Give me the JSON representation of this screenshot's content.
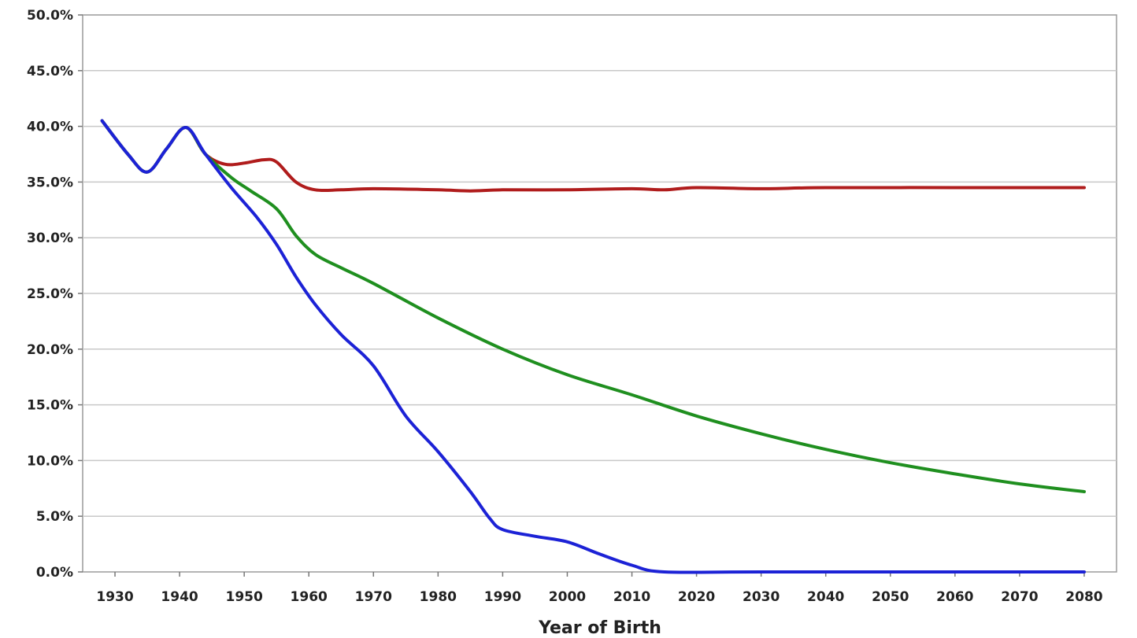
{
  "chart_data": {
    "type": "line",
    "title": "",
    "xlabel": "Year of Birth",
    "ylabel": "",
    "xlim": [
      1925,
      2085
    ],
    "ylim": [
      0,
      50
    ],
    "x_ticks": [
      1930,
      1940,
      1950,
      1960,
      1970,
      1980,
      1990,
      2000,
      2010,
      2020,
      2030,
      2040,
      2050,
      2060,
      2070,
      2080
    ],
    "y_ticks": [
      0,
      5,
      10,
      15,
      20,
      25,
      30,
      35,
      40,
      45,
      50
    ],
    "y_tick_labels": [
      "0.0%",
      "5.0%",
      "10.0%",
      "15.0%",
      "20.0%",
      "25.0%",
      "30.0%",
      "35.0%",
      "40.0%",
      "45.0%",
      "50.0%"
    ],
    "grid": true,
    "legend": "none",
    "series": [
      {
        "color": "#b01c1c",
        "points": [
          [
            1928,
            40.5
          ],
          [
            1932,
            37.5
          ],
          [
            1935,
            35.9
          ],
          [
            1938,
            38
          ],
          [
            1941,
            39.9
          ],
          [
            1944,
            37.5
          ],
          [
            1947,
            36.6
          ],
          [
            1950,
            36.7
          ],
          [
            1953,
            37
          ],
          [
            1955,
            36.8
          ],
          [
            1958,
            35
          ],
          [
            1961,
            34.3
          ],
          [
            1965,
            34.3
          ],
          [
            1970,
            34.4
          ],
          [
            1980,
            34.3
          ],
          [
            1985,
            34.2
          ],
          [
            1990,
            34.3
          ],
          [
            2000,
            34.3
          ],
          [
            2010,
            34.4
          ],
          [
            2015,
            34.3
          ],
          [
            2020,
            34.5
          ],
          [
            2030,
            34.4
          ],
          [
            2040,
            34.5
          ],
          [
            2060,
            34.5
          ],
          [
            2080,
            34.5
          ]
        ]
      },
      {
        "color": "#1f8f1f",
        "points": [
          [
            1928,
            40.5
          ],
          [
            1932,
            37.5
          ],
          [
            1935,
            35.9
          ],
          [
            1938,
            38
          ],
          [
            1941,
            39.9
          ],
          [
            1944,
            37.5
          ],
          [
            1948,
            35.4
          ],
          [
            1951,
            34.2
          ],
          [
            1955,
            32.6
          ],
          [
            1958,
            30.2
          ],
          [
            1961,
            28.5
          ],
          [
            1965,
            27.3
          ],
          [
            1970,
            25.9
          ],
          [
            1980,
            22.8
          ],
          [
            1990,
            20
          ],
          [
            2000,
            17.7
          ],
          [
            2010,
            15.9
          ],
          [
            2020,
            14
          ],
          [
            2030,
            12.4
          ],
          [
            2040,
            11
          ],
          [
            2050,
            9.8
          ],
          [
            2060,
            8.8
          ],
          [
            2070,
            7.9
          ],
          [
            2080,
            7.2
          ]
        ]
      },
      {
        "color": "#1c22d6",
        "points": [
          [
            1928,
            40.5
          ],
          [
            1932,
            37.5
          ],
          [
            1935,
            35.9
          ],
          [
            1938,
            38
          ],
          [
            1941,
            39.9
          ],
          [
            1944,
            37.5
          ],
          [
            1948,
            34.5
          ],
          [
            1952,
            31.8
          ],
          [
            1955,
            29.4
          ],
          [
            1958,
            26.5
          ],
          [
            1961,
            24
          ],
          [
            1965,
            21.3
          ],
          [
            1970,
            18.5
          ],
          [
            1975,
            14
          ],
          [
            1980,
            10.8
          ],
          [
            1985,
            7.2
          ],
          [
            1988,
            4.8
          ],
          [
            1990,
            3.8
          ],
          [
            1995,
            3.2
          ],
          [
            2000,
            2.7
          ],
          [
            2005,
            1.6
          ],
          [
            2010,
            0.6
          ],
          [
            2015,
            0
          ],
          [
            2030,
            0
          ],
          [
            2080,
            0
          ]
        ]
      }
    ]
  }
}
